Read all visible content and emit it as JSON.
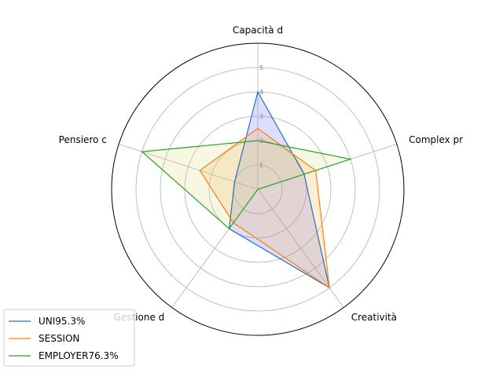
{
  "chart_data": {
    "type": "radar",
    "axes": [
      "Capacità d",
      "Complex pr",
      "Creatività",
      "Gestione d",
      "Pensiero c"
    ],
    "radial_ticks": [
      "1",
      "2",
      "3",
      "4",
      "5"
    ],
    "rmax": 6,
    "grid": true,
    "legend_position": "bottom-left",
    "series": [
      {
        "name": "UNI95.3%",
        "color": "#1f77b4",
        "values": [
          4,
          2,
          5,
          2,
          1
        ]
      },
      {
        "name": "SESSION",
        "color": "#ff7f0e",
        "values": [
          2.5,
          2.5,
          5,
          1.7,
          2.5
        ]
      },
      {
        "name": "EMPLOYER76.3%",
        "color": "#2ca02c",
        "values": [
          2,
          4,
          0,
          2,
          5
        ]
      }
    ],
    "fill_colors": [
      "#6464ff",
      "#f5b041",
      "#dcdc82"
    ]
  }
}
